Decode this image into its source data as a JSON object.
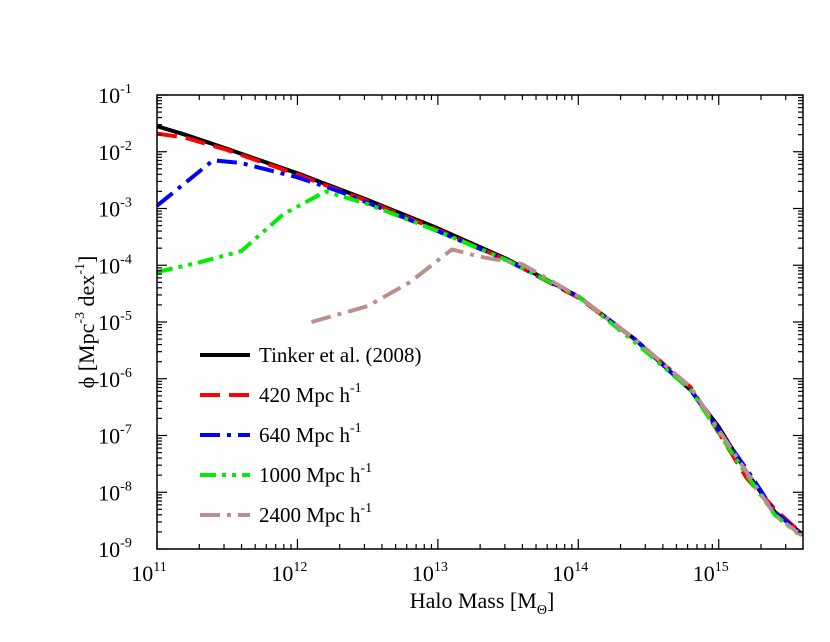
{
  "chart_data": {
    "type": "line",
    "title": "",
    "xlabel": "Halo Mass [M",
    "xlabel_sub": "Θ",
    "xlabel_close": "]",
    "ylabel": "ϕ [Mpc",
    "ylabel_sup1": "-3",
    "ylabel_mid": " dex",
    "ylabel_sup2": "-1",
    "ylabel_close": "]",
    "xscale": "log10",
    "yscale": "log10",
    "xlim_log": [
      11,
      15.6
    ],
    "ylim_log": [
      -9,
      -1
    ],
    "x_ticks": [
      {
        "base": "10",
        "exp": "11",
        "v": 11
      },
      {
        "base": "10",
        "exp": "12",
        "v": 12
      },
      {
        "base": "10",
        "exp": "13",
        "v": 13
      },
      {
        "base": "10",
        "exp": "14",
        "v": 14
      },
      {
        "base": "10",
        "exp": "15",
        "v": 15
      }
    ],
    "y_ticks": [
      {
        "base": "10",
        "exp": "-1",
        "v": -1
      },
      {
        "base": "10",
        "exp": "-2",
        "v": -2
      },
      {
        "base": "10",
        "exp": "-3",
        "v": -3
      },
      {
        "base": "10",
        "exp": "-4",
        "v": -4
      },
      {
        "base": "10",
        "exp": "-5",
        "v": -5
      },
      {
        "base": "10",
        "exp": "-6",
        "v": -6
      },
      {
        "base": "10",
        "exp": "-7",
        "v": -7
      },
      {
        "base": "10",
        "exp": "-8",
        "v": -8
      },
      {
        "base": "10",
        "exp": "-9",
        "v": -9
      }
    ],
    "legend_position": "lower-left",
    "series": [
      {
        "name": "Tinker et al. (2008)",
        "sup": "",
        "color": "#000000",
        "dash": "solid",
        "log_x": [
          11.0,
          11.2,
          11.5,
          12.0,
          12.5,
          13.0,
          13.5,
          14.0,
          14.4,
          14.8,
          15.0,
          15.2,
          15.4,
          15.6
        ],
        "log_y": [
          -1.55,
          -1.7,
          -1.95,
          -2.38,
          -2.85,
          -3.35,
          -3.9,
          -4.55,
          -5.3,
          -6.2,
          -6.85,
          -7.65,
          -8.35,
          -8.75
        ]
      },
      {
        "name": "420 Mpc h",
        "sup": "-1",
        "color": "#ff0000",
        "dash": "dash",
        "log_x": [
          11.0,
          11.2,
          11.5,
          12.0,
          12.5,
          13.0,
          13.5,
          14.0,
          14.4,
          14.8,
          15.0,
          15.2,
          15.4,
          15.6
        ],
        "log_y": [
          -1.68,
          -1.75,
          -1.97,
          -2.4,
          -2.87,
          -3.38,
          -3.92,
          -4.57,
          -5.3,
          -6.15,
          -6.95,
          -7.75,
          -8.3,
          -8.75
        ]
      },
      {
        "name": "640 Mpc h",
        "sup": "-1",
        "color": "#0000ff",
        "dash": "dashdot",
        "log_x": [
          11.0,
          11.2,
          11.4,
          11.6,
          12.0,
          12.3,
          12.5,
          13.0,
          13.5,
          14.0,
          14.4,
          14.8,
          15.0,
          15.2,
          15.4,
          15.6
        ],
        "log_y": [
          -2.95,
          -2.55,
          -2.15,
          -2.2,
          -2.45,
          -2.7,
          -2.9,
          -3.4,
          -3.92,
          -4.55,
          -5.3,
          -6.2,
          -6.9,
          -7.6,
          -8.35,
          -8.75
        ]
      },
      {
        "name": "1000 Mpc h",
        "sup": "-1",
        "color": "#00ee00",
        "dash": "dashdotdot",
        "log_x": [
          11.0,
          11.3,
          11.6,
          11.9,
          12.2,
          12.5,
          13.0,
          13.5,
          14.0,
          14.4,
          14.8,
          15.0,
          15.2,
          15.4,
          15.6
        ],
        "log_y": [
          -4.12,
          -3.95,
          -3.75,
          -3.1,
          -2.7,
          -2.92,
          -3.4,
          -3.92,
          -4.55,
          -5.35,
          -6.2,
          -6.95,
          -7.7,
          -8.4,
          -8.8
        ]
      },
      {
        "name": "2400 Mpc h",
        "sup": "-1",
        "color": "#bc8f8f",
        "dash": "dashdot",
        "log_x": [
          12.1,
          12.5,
          12.8,
          13.1,
          13.3,
          13.6,
          14.0,
          14.4,
          14.8,
          15.0,
          15.2,
          15.4,
          15.6
        ],
        "log_y": [
          -5.0,
          -4.72,
          -4.3,
          -3.72,
          -3.85,
          -3.98,
          -4.55,
          -5.3,
          -6.15,
          -6.9,
          -7.65,
          -8.4,
          -8.78
        ]
      }
    ]
  }
}
